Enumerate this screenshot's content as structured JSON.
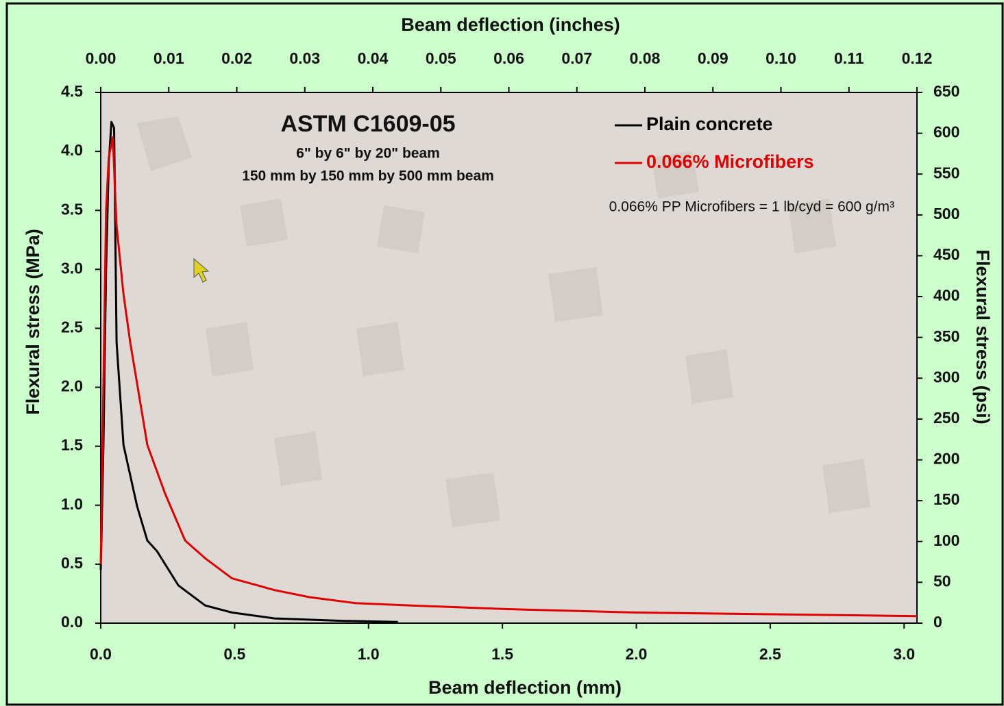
{
  "chart_data": {
    "type": "line",
    "title": "ASTM C1609-05",
    "subtitle": [
      "6\" by 6\" by 20\" beam",
      "150 mm by 150 mm by 500 mm beam"
    ],
    "annotation": "0.066% PP Microfibers = 1 lb/cyd = 600 g/m³",
    "x_label": "Beam deflection (mm)",
    "x2_label": "Beam deflection (inches)",
    "y_label": "Flexural stress (MPa)",
    "y2_label": "Flexural stress (psi)",
    "xlim": [
      0,
      3.048
    ],
    "xticks": [
      {
        "value": 0,
        "label": "0.0"
      },
      0.5,
      {
        "value": 1,
        "label": "1.0"
      },
      1.5,
      {
        "value": 2,
        "label": "2.0"
      },
      2.5,
      {
        "value": 3,
        "label": "3.0"
      }
    ],
    "x2lim": [
      0,
      0.12
    ],
    "x2ticks": [
      {
        "value": 0,
        "label": "0.00"
      },
      0.01,
      0.02,
      0.03,
      0.04,
      0.05,
      0.06,
      0.07,
      0.08,
      0.09,
      {
        "value": 0.1,
        "label": "0.10"
      },
      0.11,
      0.12
    ],
    "ylim": [
      0,
      4.5
    ],
    "yticks": [
      {
        "value": 0,
        "label": "0.0"
      },
      0.5,
      {
        "value": 1,
        "label": "1.0"
      },
      1.5,
      {
        "value": 2,
        "label": "2.0"
      },
      2.5,
      {
        "value": 3,
        "label": "3.0"
      },
      3.5,
      {
        "value": 4,
        "label": "4.0"
      },
      4.5
    ],
    "y2lim": [
      0,
      650
    ],
    "y2ticks": [
      0,
      50,
      100,
      150,
      200,
      250,
      300,
      350,
      400,
      450,
      500,
      550,
      600,
      650
    ],
    "legend": "top-right",
    "series": [
      {
        "name": "Plain concrete",
        "color": "#000000",
        "x": [
          0,
          0.01,
          0.02,
          0.03,
          0.04,
          0.05,
          0.059,
          0.085,
          0.136,
          0.174,
          0.21,
          0.29,
          0.39,
          0.49,
          0.65,
          0.9,
          1.11
        ],
        "values": [
          0.45,
          1.5,
          3.0,
          3.9,
          4.25,
          4.2,
          2.38,
          1.51,
          0.99,
          0.7,
          0.61,
          0.32,
          0.15,
          0.09,
          0.04,
          0.02,
          0.01
        ]
      },
      {
        "name": "0.066% Microfibers",
        "color": "#e00000",
        "x": [
          0,
          0.01,
          0.02,
          0.03,
          0.045,
          0.059,
          0.085,
          0.11,
          0.136,
          0.174,
          0.24,
          0.315,
          0.39,
          0.49,
          0.65,
          0.78,
          0.95,
          1.16,
          1.5,
          2.0,
          3.048
        ],
        "values": [
          0.5,
          2.0,
          3.5,
          3.95,
          4.12,
          3.37,
          2.79,
          2.38,
          2.03,
          1.51,
          1.1,
          0.7,
          0.55,
          0.38,
          0.28,
          0.22,
          0.17,
          0.15,
          0.12,
          0.09,
          0.06
        ]
      }
    ]
  }
}
